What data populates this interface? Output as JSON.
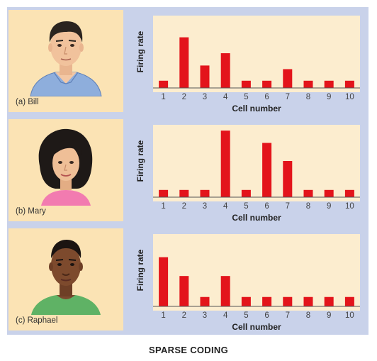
{
  "caption": "SPARSE CODING",
  "persons": [
    {
      "label": "(a) Bill"
    },
    {
      "label": "(b) Mary"
    },
    {
      "label": "(c) Raphael"
    }
  ],
  "colors": {
    "bar": "#e3141b",
    "plot_bg": "#fcedcf",
    "panel_bg": "#c9d2ea",
    "portrait_bg": "#fbe3b4"
  },
  "chart_data": [
    {
      "type": "bar",
      "title": "",
      "xlabel": "Cell number",
      "ylabel": "Firing rate",
      "categories": [
        "1",
        "2",
        "3",
        "4",
        "5",
        "6",
        "7",
        "8",
        "9",
        "10"
      ],
      "values": [
        1,
        7,
        3.1,
        4.8,
        1,
        1,
        2.6,
        1,
        1,
        1
      ],
      "ylim": [
        0,
        10
      ],
      "grid": false
    },
    {
      "type": "bar",
      "title": "",
      "xlabel": "Cell number",
      "ylabel": "Firing rate",
      "categories": [
        "1",
        "2",
        "3",
        "4",
        "5",
        "6",
        "7",
        "8",
        "9",
        "10"
      ],
      "values": [
        1,
        1,
        1,
        9.2,
        1,
        7.5,
        5,
        1,
        1,
        1
      ],
      "ylim": [
        0,
        10
      ],
      "grid": false
    },
    {
      "type": "bar",
      "title": "",
      "xlabel": "Cell number",
      "ylabel": "Firing rate",
      "categories": [
        "1",
        "2",
        "3",
        "4",
        "5",
        "6",
        "7",
        "8",
        "9",
        "10"
      ],
      "values": [
        6.8,
        4.2,
        1.3,
        4.2,
        1.3,
        1.3,
        1.3,
        1.3,
        1.3,
        1.3
      ],
      "ylim": [
        0,
        10
      ],
      "grid": false
    }
  ]
}
